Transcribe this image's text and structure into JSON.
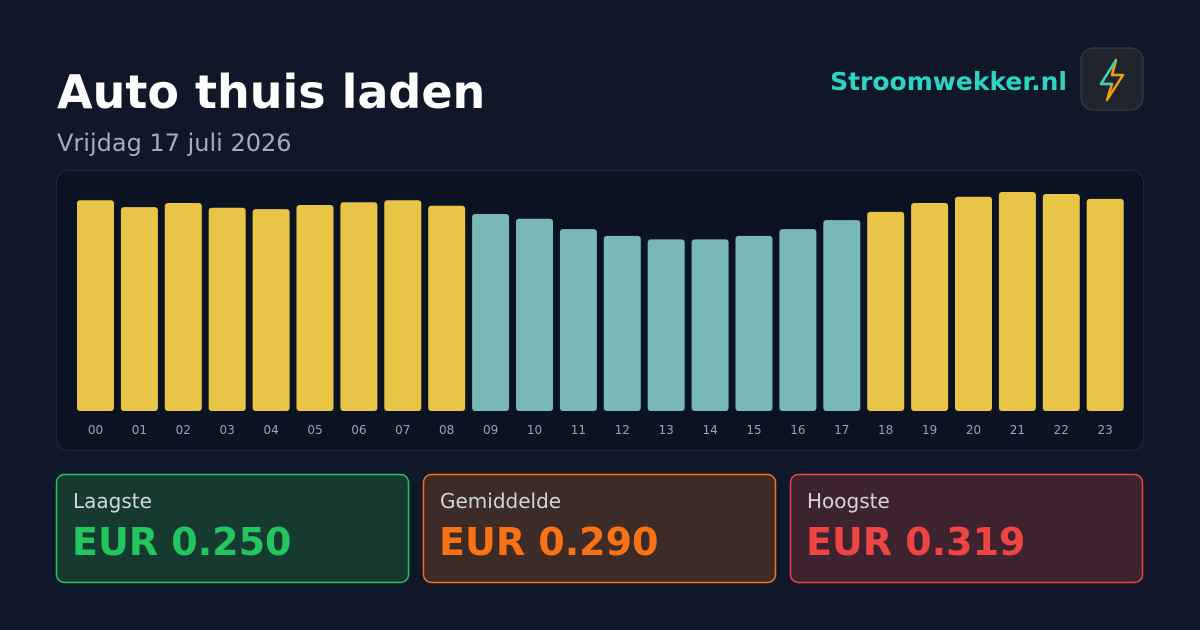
{
  "header": {
    "title": "Auto thuis laden",
    "subtitle": "Vrijdag 17 juli 2026",
    "brand": "Stroomwekker.nl"
  },
  "chart_data": {
    "type": "bar",
    "categories": [
      "00",
      "01",
      "02",
      "03",
      "04",
      "05",
      "06",
      "07",
      "08",
      "09",
      "10",
      "11",
      "12",
      "13",
      "14",
      "15",
      "16",
      "17",
      "18",
      "19",
      "20",
      "21",
      "22",
      "23"
    ],
    "values": [
      0.307,
      0.297,
      0.303,
      0.296,
      0.294,
      0.3,
      0.304,
      0.307,
      0.299,
      0.287,
      0.28,
      0.265,
      0.255,
      0.25,
      0.25,
      0.255,
      0.265,
      0.278,
      0.29,
      0.303,
      0.312,
      0.319,
      0.316,
      0.309
    ],
    "colors": [
      "#e8c547",
      "#e8c547",
      "#e8c547",
      "#e8c547",
      "#e8c547",
      "#e8c547",
      "#e8c547",
      "#e8c547",
      "#e8c547",
      "#7ab8b8",
      "#7ab8b8",
      "#7ab8b8",
      "#7ab8b8",
      "#7ab8b8",
      "#7ab8b8",
      "#7ab8b8",
      "#7ab8b8",
      "#7ab8b8",
      "#e8c547",
      "#e8c547",
      "#e8c547",
      "#e8c547",
      "#e8c547",
      "#e8c547"
    ]
  },
  "stats": [
    {
      "label": "Laagste",
      "value": "EUR 0.250"
    },
    {
      "label": "Gemiddelde",
      "value": "EUR 0.290"
    },
    {
      "label": "Hoogste",
      "value": "EUR 0.319"
    }
  ]
}
